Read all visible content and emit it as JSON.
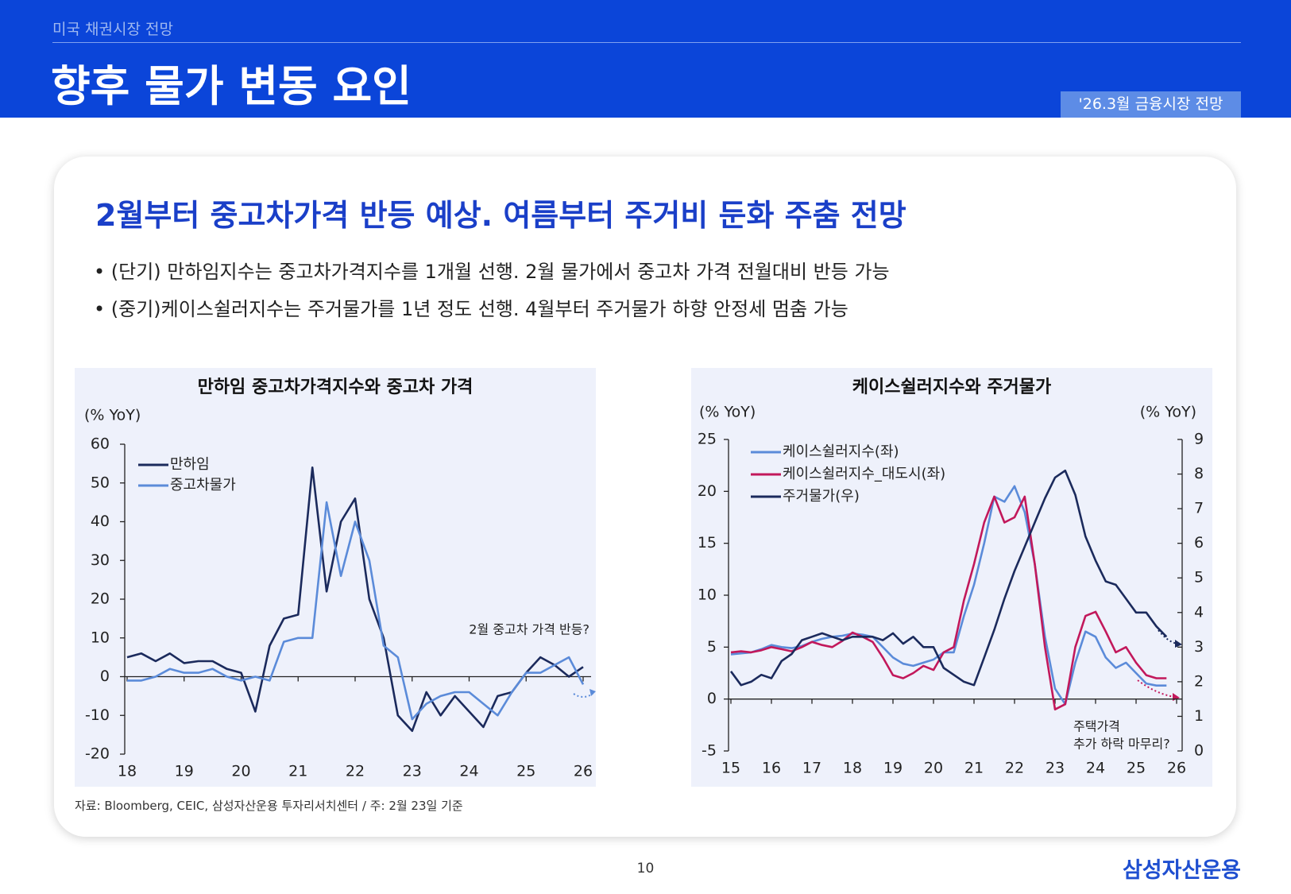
{
  "header": {
    "section": "미국 채권시장 전망",
    "title": "향후 물가 변동 요인",
    "badge": "'26.3월 금융시장 전망"
  },
  "headline": "2월부터 중고차가격 반등 예상. 여름부터 주거비 둔화 주춤 전망",
  "bullets": [
    "• (단기) 만하임지수는 중고차가격지수를 1개월 선행. 2월 물가에서 중고차 가격 전월대비 반등 가능",
    "• (중기)케이스쉴러지수는 주거물가를 1년 정도 선행. 4월부터 주거물가 하향 안정세 멈춤 가능"
  ],
  "chart_data": [
    {
      "type": "line",
      "title": "만하임 중고차가격지수와 중고차 가격",
      "y_label": "(% YoY)",
      "annotations": [
        "2월 중고차 가격 반등?"
      ],
      "legend": "upper left",
      "x": [
        18,
        18.25,
        18.5,
        18.75,
        19,
        19.25,
        19.5,
        19.75,
        20,
        20.25,
        20.5,
        20.75,
        21,
        21.25,
        21.5,
        21.75,
        22,
        22.25,
        22.5,
        22.75,
        23,
        23.25,
        23.5,
        23.75,
        24,
        24.25,
        24.5,
        24.75,
        25,
        25.25,
        25.5,
        25.75,
        26
      ],
      "xlim": [
        18,
        26
      ],
      "xticks": [
        18,
        19,
        20,
        21,
        22,
        23,
        24,
        25,
        26
      ],
      "ylim": [
        -20,
        60
      ],
      "yticks": [
        -20,
        -10,
        0,
        10,
        20,
        30,
        40,
        50,
        60
      ],
      "series": [
        {
          "name": "만하임",
          "color": "#1b2a5c",
          "values": [
            5,
            6,
            4,
            6,
            3.5,
            4,
            4,
            2,
            1,
            -9,
            8,
            15,
            16,
            54,
            22,
            40,
            46,
            20,
            10,
            -10,
            -14,
            -4,
            -10,
            -5,
            -9,
            -13,
            -5,
            -4,
            1,
            5,
            3,
            0,
            2.5
          ]
        },
        {
          "name": "중고차물가",
          "color": "#5b8bd9",
          "values": [
            -1,
            -1,
            0,
            2,
            1,
            1,
            2,
            0,
            -1,
            0,
            -1,
            9,
            10,
            10,
            45,
            26,
            40,
            30,
            8,
            5,
            -11,
            -7,
            -5,
            -4,
            -4,
            -7,
            -10,
            -4,
            1,
            1,
            3,
            5,
            -2
          ]
        }
      ]
    },
    {
      "type": "line",
      "title": "케이스쉴러지수와 주거물가",
      "y_label": "(% YoY)",
      "y2_label": "(% YoY)",
      "annotations": [
        "주택가격",
        "추가 하락 마무리?"
      ],
      "legend": "upper left",
      "x": [
        15,
        15.25,
        15.5,
        15.75,
        16,
        16.25,
        16.5,
        16.75,
        17,
        17.25,
        17.5,
        17.75,
        18,
        18.25,
        18.5,
        18.75,
        19,
        19.25,
        19.5,
        19.75,
        20,
        20.25,
        20.5,
        20.75,
        21,
        21.25,
        21.5,
        21.75,
        22,
        22.25,
        22.5,
        22.75,
        23,
        23.25,
        23.5,
        23.75,
        24,
        24.25,
        24.5,
        24.75,
        25,
        25.25,
        25.5,
        25.75
      ],
      "xlim": [
        15,
        26
      ],
      "xticks": [
        15,
        16,
        17,
        18,
        19,
        20,
        21,
        22,
        23,
        24,
        25,
        26
      ],
      "ylim": [
        -5,
        25
      ],
      "yticks": [
        -5,
        0,
        5,
        10,
        15,
        20,
        25
      ],
      "y2lim": [
        0,
        9
      ],
      "y2ticks": [
        0,
        1,
        2,
        3,
        4,
        5,
        6,
        7,
        8,
        9
      ],
      "series": [
        {
          "name": "케이스쉴러지수(좌)",
          "color": "#5b8bd9",
          "values": [
            4.3,
            4.4,
            4.5,
            4.8,
            5.2,
            5.0,
            4.9,
            5.1,
            5.5,
            5.8,
            6.0,
            6.1,
            6.3,
            6.2,
            6.0,
            5.0,
            4.0,
            3.4,
            3.2,
            3.5,
            3.8,
            4.5,
            4.5,
            8.0,
            11,
            15,
            19.5,
            19.0,
            20.5,
            18,
            13,
            6,
            1,
            -0.5,
            3.5,
            6.5,
            6,
            4,
            3,
            3.5,
            2.5,
            1.5,
            1.3,
            1.3
          ]
        },
        {
          "name": "케이스쉴러지수_대도시(좌)",
          "color": "#c2185b",
          "values": [
            4.5,
            4.6,
            4.5,
            4.7,
            5.0,
            4.8,
            4.6,
            5.0,
            5.5,
            5.2,
            5.0,
            5.6,
            6.4,
            6.0,
            5.5,
            4.0,
            2.3,
            2.0,
            2.5,
            3.2,
            2.8,
            4.5,
            5.0,
            9.5,
            13,
            17,
            19.5,
            17,
            17.5,
            19.5,
            13,
            5,
            -1,
            -0.5,
            5,
            8,
            8.4,
            6.5,
            4.5,
            5,
            3.5,
            2.3,
            2.0,
            2.0
          ]
        },
        {
          "name": "주거물가(우)",
          "color": "#1b2a5c",
          "axis": "y2",
          "values": [
            2.3,
            1.9,
            2.0,
            2.2,
            2.1,
            2.6,
            2.8,
            3.2,
            3.3,
            3.4,
            3.3,
            3.2,
            3.3,
            3.3,
            3.3,
            3.2,
            3.4,
            3.1,
            3.3,
            3.0,
            3.0,
            2.4,
            2.2,
            2.0,
            1.9,
            2.7,
            3.5,
            4.4,
            5.2,
            5.9,
            6.6,
            7.3,
            7.9,
            8.1,
            7.4,
            6.2,
            5.5,
            4.9,
            4.8,
            4.4,
            4.0,
            4.0,
            3.6,
            3.3
          ]
        }
      ]
    }
  ],
  "source": "자료: Bloomberg, CEIC, 삼성자산운용 투자리서치센터 / 주: 2월 23일 기준",
  "page_number": 10,
  "logo": "삼성자산운용"
}
